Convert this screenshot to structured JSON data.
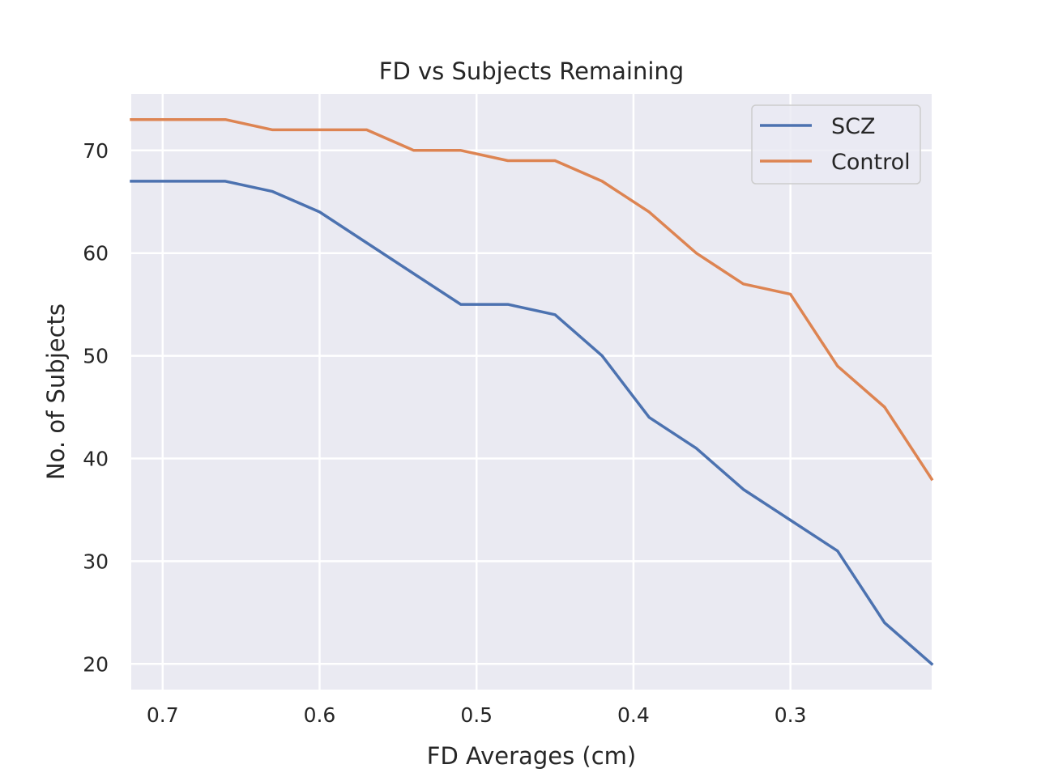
{
  "chart_data": {
    "type": "line",
    "title": "FD vs Subjects Remaining",
    "xlabel": "FD Averages (cm)",
    "ylabel": "No. of Subjects",
    "x_inverted": true,
    "xlim": [
      0.72,
      0.21
    ],
    "ylim": [
      17.5,
      75.5
    ],
    "xticks": [
      0.7,
      0.6,
      0.5,
      0.4,
      0.3
    ],
    "xtick_labels": [
      "0.7",
      "0.6",
      "0.5",
      "0.4",
      "0.3"
    ],
    "yticks": [
      20,
      30,
      40,
      50,
      60,
      70
    ],
    "ytick_labels": [
      "20",
      "30",
      "40",
      "50",
      "60",
      "70"
    ],
    "grid": true,
    "background": "#eaeaf2",
    "legend_position": "top-right",
    "x": [
      0.72,
      0.69,
      0.66,
      0.63,
      0.6,
      0.57,
      0.54,
      0.51,
      0.48,
      0.45,
      0.42,
      0.39,
      0.36,
      0.33,
      0.3,
      0.27,
      0.24,
      0.21
    ],
    "series": [
      {
        "name": "SCZ",
        "color": "#4c72b0",
        "values": [
          67,
          67,
          67,
          66,
          64,
          61,
          58,
          55,
          55,
          54,
          50,
          44,
          41,
          37,
          34,
          31,
          24,
          20
        ]
      },
      {
        "name": "Control",
        "color": "#dd8452",
        "values": [
          73,
          73,
          73,
          72,
          72,
          72,
          70,
          70,
          69,
          69,
          67,
          64,
          60,
          57,
          56,
          49,
          45,
          38
        ]
      }
    ]
  }
}
